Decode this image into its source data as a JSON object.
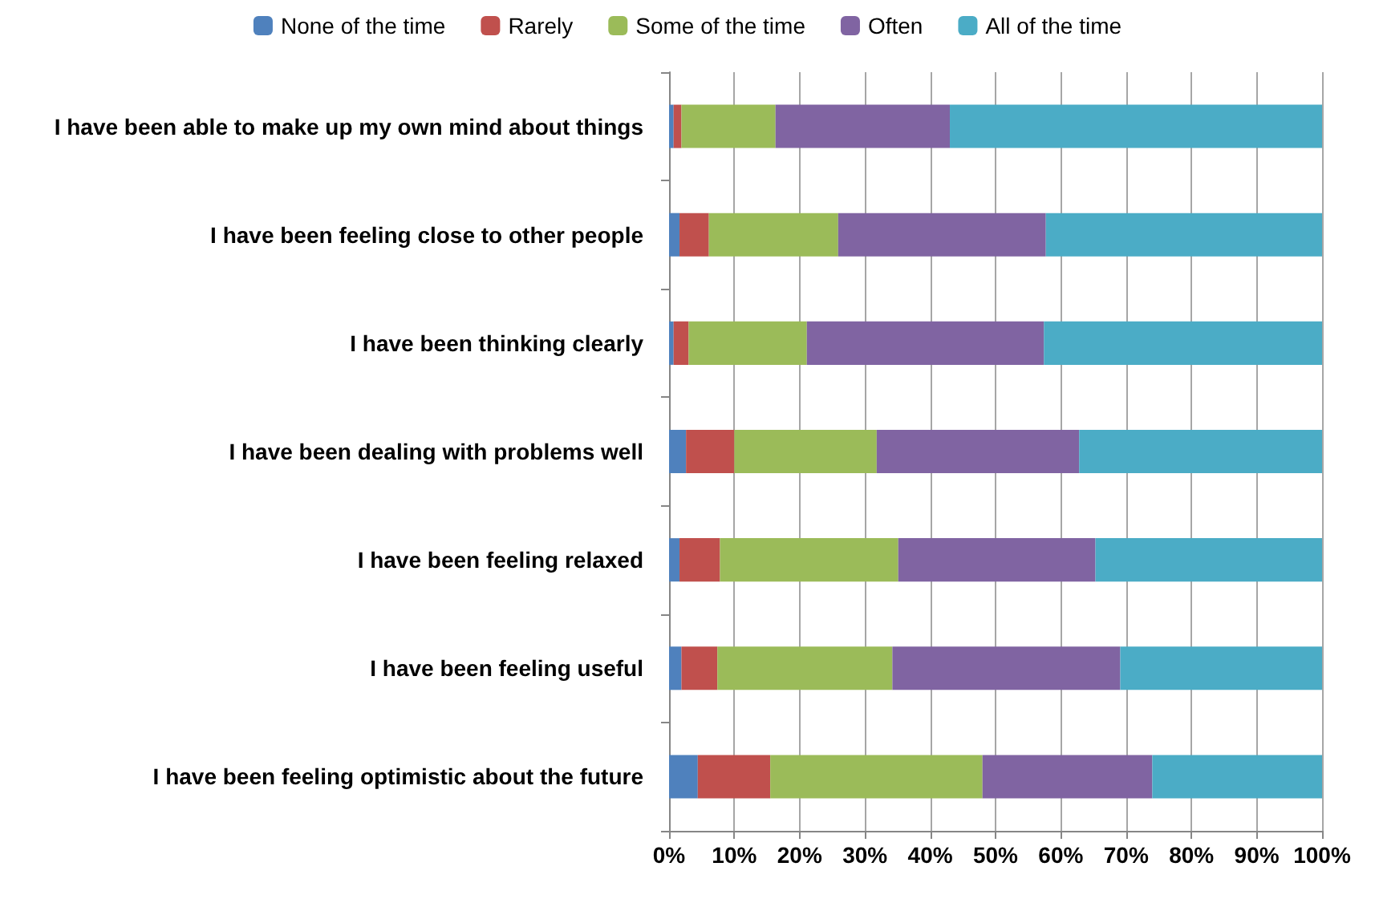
{
  "chart_data": {
    "type": "bar",
    "orientation": "horizontal",
    "stacked": true,
    "categories": [
      "I have been able to make up my own mind about things",
      "I have been feeling close to other people",
      "I have been thinking clearly",
      "I have been dealing with problems well",
      "I have been feeling relaxed",
      "I have been feeling useful",
      "I have been feeling optimistic about the future"
    ],
    "series": [
      {
        "name": "None of the time",
        "color": "#4f81bd",
        "values": [
          0.7,
          1.6,
          0.7,
          2.6,
          1.6,
          1.9,
          4.4
        ]
      },
      {
        "name": "Rarely",
        "color": "#c0504d",
        "values": [
          1.2,
          4.5,
          2.3,
          7.4,
          6.2,
          5.5,
          11.1
        ]
      },
      {
        "name": "Some of the time",
        "color": "#9bbb59",
        "values": [
          14.4,
          19.8,
          18.1,
          21.8,
          27.3,
          26.8,
          32.5
        ]
      },
      {
        "name": "Often",
        "color": "#8064a2",
        "values": [
          26.7,
          31.8,
          36.3,
          31.0,
          30.2,
          34.9,
          26.0
        ]
      },
      {
        "name": "All of the time",
        "color": "#4bacc6",
        "values": [
          57.0,
          42.3,
          42.6,
          37.2,
          34.7,
          30.9,
          26.0
        ]
      }
    ],
    "xlim": [
      0,
      100
    ],
    "xticks": [
      {
        "value": 0,
        "label": "0%"
      },
      {
        "value": 10,
        "label": "10%"
      },
      {
        "value": 20,
        "label": "20%"
      },
      {
        "value": 30,
        "label": "30%"
      },
      {
        "value": 40,
        "label": "40%"
      },
      {
        "value": 50,
        "label": "50%"
      },
      {
        "value": 60,
        "label": "60%"
      },
      {
        "value": 70,
        "label": "70%"
      },
      {
        "value": 80,
        "label": "80%"
      },
      {
        "value": 90,
        "label": "90%"
      },
      {
        "value": 100,
        "label": "100%"
      }
    ],
    "grid": "x",
    "legend": "top"
  }
}
